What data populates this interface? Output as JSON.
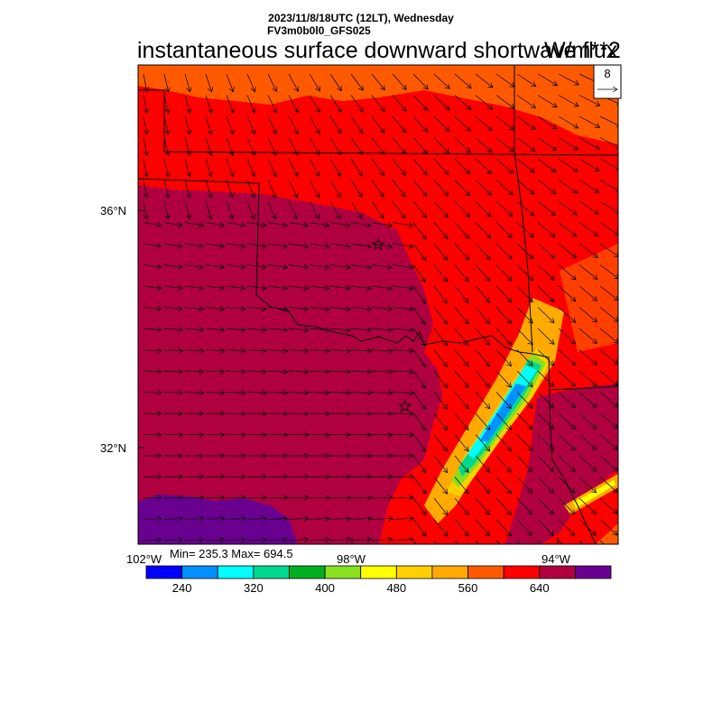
{
  "header": {
    "line1": "2023/11/8/18UTC (12LT), Wednesday",
    "line2": "FV3m0b0l0_GFS025",
    "title": "instantaneous surface downward shortwave flux",
    "units": "W/m**2"
  },
  "reference_vector": {
    "label": "8"
  },
  "axes": {
    "lat_labels": [
      "36°N",
      "32°N"
    ],
    "lon_labels": [
      "102°W",
      "98°W",
      "94°W"
    ]
  },
  "stats": {
    "text": "Min= 235.3 Max= 694.5",
    "min": 235.3,
    "max": 694.5
  },
  "colorbar": {
    "colors": [
      "#0000ff",
      "#0090ff",
      "#00ffff",
      "#00d890",
      "#00b020",
      "#88e020",
      "#ffff00",
      "#ffd000",
      "#ffaa00",
      "#ff5a00",
      "#ff0000",
      "#b00040",
      "#6a0090"
    ],
    "tick_labels": [
      "240",
      "320",
      "400",
      "480",
      "560",
      "640"
    ],
    "tick_values": [
      240,
      320,
      400,
      480,
      560,
      640
    ],
    "range": [
      200,
      720
    ]
  },
  "markers": [
    {
      "name": "city-marker",
      "lon": -97.5,
      "lat": 35.5
    },
    {
      "name": "city-marker",
      "lon": -97.0,
      "lat": 32.8
    }
  ],
  "map_data": {
    "lon_range": [
      -102,
      -93
    ],
    "lat_range": [
      30.5,
      38.5
    ],
    "field_regions": [
      {
        "level": "orange",
        "color": "#ff5a00",
        "area": "north-of-38N"
      },
      {
        "level": "red",
        "color": "#ff0000",
        "area": "Kansas-and-eastern-Oklahoma"
      },
      {
        "level": "crimson",
        "color": "#b00040",
        "area": "Oklahoma-Texas-Panhandle"
      },
      {
        "level": "purple",
        "color": "#6a0090",
        "area": "southwest-Texas"
      },
      {
        "level": "low",
        "color": "#0090ff",
        "area": "northeast-Texas-cloud-band"
      }
    ]
  }
}
